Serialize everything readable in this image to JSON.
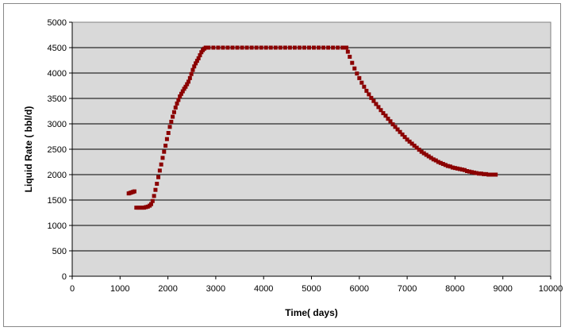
{
  "chart_data": {
    "type": "scatter",
    "title": "",
    "xlabel": "Time( days)",
    "ylabel": "Liquid Rate ( bbl/d)",
    "xlim": [
      0,
      10000
    ],
    "ylim": [
      0,
      5000
    ],
    "x_ticks": [
      0,
      1000,
      2000,
      3000,
      4000,
      5000,
      6000,
      7000,
      8000,
      9000,
      10000
    ],
    "y_ticks": [
      0,
      500,
      1000,
      1500,
      2000,
      2500,
      3000,
      3500,
      4000,
      4500,
      5000
    ],
    "grid": "horizontal",
    "plot_background": "#d9d9d9",
    "marker_color": "#8b0000",
    "series": [
      {
        "points": [
          [
            1180,
            1630
          ],
          [
            1210,
            1640
          ],
          [
            1240,
            1650
          ],
          [
            1270,
            1660
          ],
          [
            1300,
            1670
          ],
          [
            1340,
            1350
          ],
          [
            1380,
            1350
          ],
          [
            1420,
            1350
          ],
          [
            1460,
            1350
          ],
          [
            1500,
            1350
          ],
          [
            1540,
            1360
          ],
          [
            1580,
            1370
          ],
          [
            1620,
            1390
          ],
          [
            1650,
            1420
          ],
          [
            1680,
            1480
          ],
          [
            1710,
            1580
          ],
          [
            1740,
            1700
          ],
          [
            1770,
            1820
          ],
          [
            1800,
            1950
          ],
          [
            1830,
            2080
          ],
          [
            1860,
            2200
          ],
          [
            1890,
            2330
          ],
          [
            1920,
            2450
          ],
          [
            1950,
            2570
          ],
          [
            1980,
            2700
          ],
          [
            2010,
            2820
          ],
          [
            2040,
            2940
          ],
          [
            2070,
            3040
          ],
          [
            2100,
            3140
          ],
          [
            2130,
            3230
          ],
          [
            2160,
            3320
          ],
          [
            2190,
            3400
          ],
          [
            2220,
            3470
          ],
          [
            2250,
            3540
          ],
          [
            2280,
            3590
          ],
          [
            2310,
            3640
          ],
          [
            2340,
            3690
          ],
          [
            2370,
            3730
          ],
          [
            2400,
            3780
          ],
          [
            2430,
            3830
          ],
          [
            2460,
            3900
          ],
          [
            2490,
            3980
          ],
          [
            2520,
            4060
          ],
          [
            2550,
            4130
          ],
          [
            2580,
            4190
          ],
          [
            2610,
            4240
          ],
          [
            2640,
            4290
          ],
          [
            2670,
            4350
          ],
          [
            2700,
            4410
          ],
          [
            2730,
            4450
          ],
          [
            2760,
            4480
          ],
          [
            2790,
            4500
          ],
          [
            2850,
            4500
          ],
          [
            2950,
            4500
          ],
          [
            3050,
            4500
          ],
          [
            3150,
            4500
          ],
          [
            3250,
            4500
          ],
          [
            3350,
            4500
          ],
          [
            3450,
            4500
          ],
          [
            3550,
            4500
          ],
          [
            3650,
            4500
          ],
          [
            3750,
            4500
          ],
          [
            3850,
            4500
          ],
          [
            3950,
            4500
          ],
          [
            4050,
            4500
          ],
          [
            4150,
            4500
          ],
          [
            4250,
            4500
          ],
          [
            4350,
            4500
          ],
          [
            4450,
            4500
          ],
          [
            4550,
            4500
          ],
          [
            4650,
            4500
          ],
          [
            4750,
            4500
          ],
          [
            4850,
            4500
          ],
          [
            4950,
            4500
          ],
          [
            5050,
            4500
          ],
          [
            5150,
            4500
          ],
          [
            5250,
            4500
          ],
          [
            5350,
            4500
          ],
          [
            5450,
            4500
          ],
          [
            5550,
            4500
          ],
          [
            5650,
            4500
          ],
          [
            5730,
            4500
          ],
          [
            5760,
            4420
          ],
          [
            5800,
            4320
          ],
          [
            5850,
            4200
          ],
          [
            5900,
            4090
          ],
          [
            5950,
            3990
          ],
          [
            6000,
            3900
          ],
          [
            6050,
            3810
          ],
          [
            6100,
            3730
          ],
          [
            6150,
            3650
          ],
          [
            6200,
            3580
          ],
          [
            6250,
            3510
          ],
          [
            6300,
            3450
          ],
          [
            6350,
            3390
          ],
          [
            6400,
            3330
          ],
          [
            6450,
            3270
          ],
          [
            6500,
            3210
          ],
          [
            6550,
            3160
          ],
          [
            6600,
            3100
          ],
          [
            6650,
            3050
          ],
          [
            6700,
            2990
          ],
          [
            6750,
            2940
          ],
          [
            6800,
            2890
          ],
          [
            6850,
            2840
          ],
          [
            6900,
            2790
          ],
          [
            6950,
            2740
          ],
          [
            7000,
            2690
          ],
          [
            7050,
            2650
          ],
          [
            7100,
            2610
          ],
          [
            7150,
            2570
          ],
          [
            7200,
            2530
          ],
          [
            7250,
            2490
          ],
          [
            7300,
            2450
          ],
          [
            7350,
            2420
          ],
          [
            7400,
            2390
          ],
          [
            7450,
            2360
          ],
          [
            7500,
            2330
          ],
          [
            7550,
            2300
          ],
          [
            7600,
            2280
          ],
          [
            7650,
            2250
          ],
          [
            7700,
            2230
          ],
          [
            7750,
            2210
          ],
          [
            7800,
            2190
          ],
          [
            7850,
            2170
          ],
          [
            7900,
            2160
          ],
          [
            7950,
            2140
          ],
          [
            8000,
            2130
          ],
          [
            8050,
            2120
          ],
          [
            8100,
            2110
          ],
          [
            8150,
            2100
          ],
          [
            8200,
            2090
          ],
          [
            8250,
            2070
          ],
          [
            8300,
            2060
          ],
          [
            8350,
            2050
          ],
          [
            8400,
            2040
          ],
          [
            8450,
            2030
          ],
          [
            8500,
            2020
          ],
          [
            8550,
            2020
          ],
          [
            8600,
            2010
          ],
          [
            8650,
            2010
          ],
          [
            8700,
            2000
          ],
          [
            8750,
            2000
          ],
          [
            8800,
            2000
          ],
          [
            8850,
            2000
          ]
        ]
      }
    ]
  }
}
